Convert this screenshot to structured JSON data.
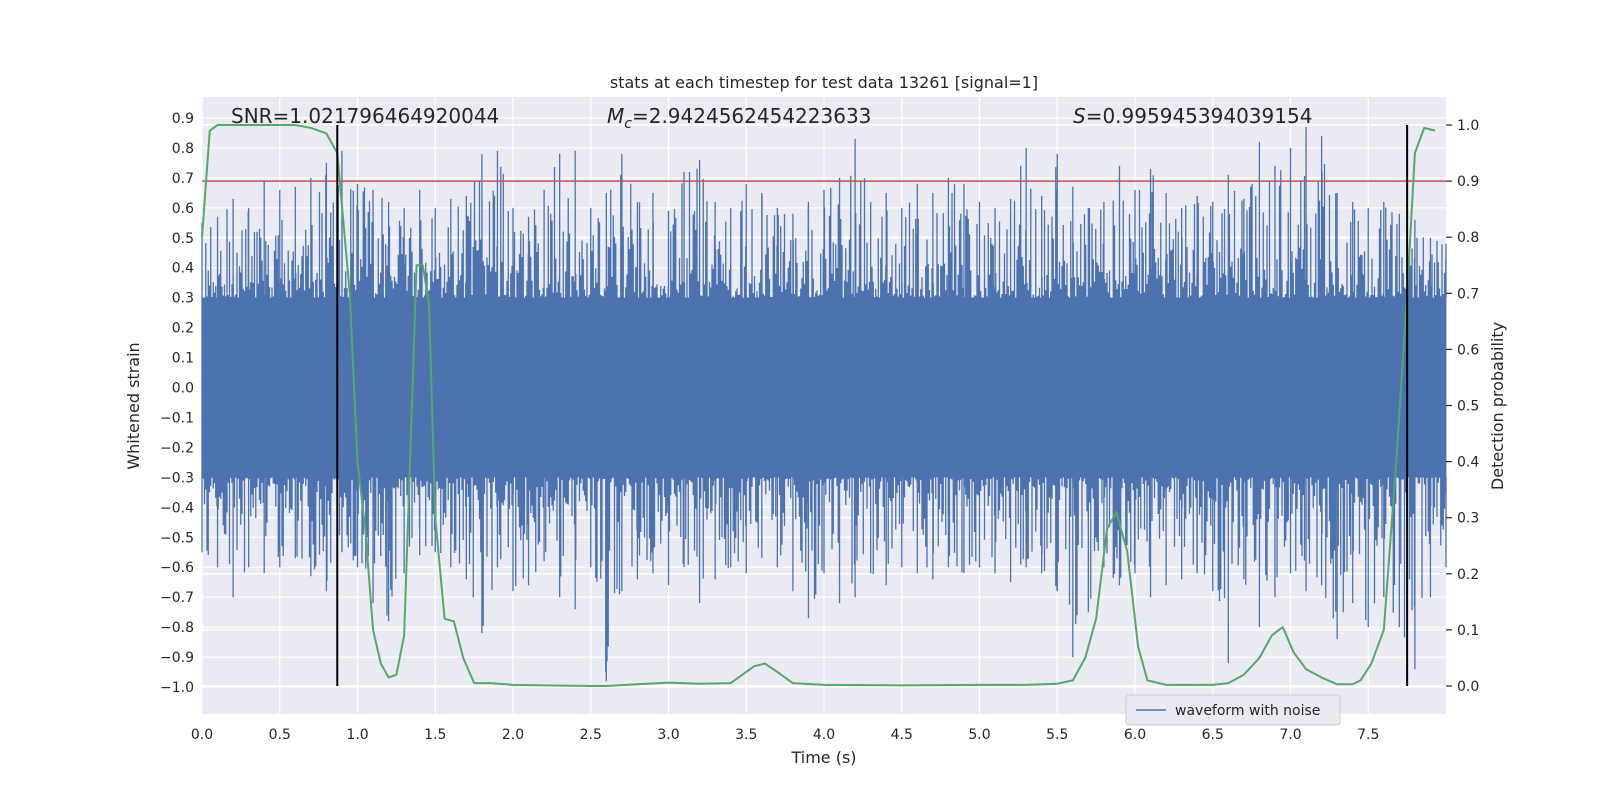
{
  "chart_data": {
    "type": "line",
    "title": "stats at each timestep for test data 13261 [signal=1]",
    "xlabel": "Time (s)",
    "ylabel": "Whitened strain",
    "y2label": "Detection probability",
    "xlim": [
      0.0,
      8.0
    ],
    "ylim": [
      -1.09,
      0.97
    ],
    "y2lim": [
      -0.05,
      1.05
    ],
    "grid": true,
    "x_ticks": [
      "0.0",
      "0.5",
      "1.0",
      "1.5",
      "2.0",
      "2.5",
      "3.0",
      "3.5",
      "4.0",
      "4.5",
      "5.0",
      "5.5",
      "6.0",
      "6.5",
      "7.0",
      "7.5"
    ],
    "y_ticks": [
      "0.9",
      "0.8",
      "0.7",
      "0.6",
      "0.5",
      "0.4",
      "0.3",
      "0.2",
      "0.1",
      "0.0",
      "−0.1",
      "−0.2",
      "−0.3",
      "−0.4",
      "−0.5",
      "−0.6",
      "−0.7",
      "−0.8",
      "−0.9",
      "−1.0"
    ],
    "y2_ticks": [
      "1.0",
      "0.9",
      "0.8",
      "0.7",
      "0.6",
      "0.5",
      "0.4",
      "0.3",
      "0.2",
      "0.1",
      "0.0"
    ],
    "annotations": {
      "snr": "SNR=1.021796464920044",
      "mc_symbol": "M",
      "mc_sub": "c",
      "mc_value": "=2.9424562454223633",
      "s_symbol": "S",
      "s_value": "=0.995945394039154"
    },
    "legend": {
      "position": "lower-right",
      "entries": [
        "waveform with noise"
      ]
    },
    "threshold_line": {
      "axis": "y2",
      "value": 0.9,
      "color": "#c44e52"
    },
    "vertical_lines": {
      "axis": "x",
      "values": [
        0.87,
        7.75
      ],
      "color": "#000000"
    },
    "waveform": {
      "name": "waveform with noise",
      "color": "#4c72b0",
      "x_range": [
        0.0,
        8.0
      ],
      "core_amplitude": 0.3,
      "max_envelope": [
        [
          0.0,
          0.55
        ],
        [
          0.1,
          0.57
        ],
        [
          0.2,
          0.63
        ],
        [
          0.3,
          0.6
        ],
        [
          0.4,
          0.69
        ],
        [
          0.5,
          0.66
        ],
        [
          0.6,
          0.67
        ],
        [
          0.7,
          0.7
        ],
        [
          0.8,
          0.75
        ],
        [
          0.9,
          0.79
        ],
        [
          1.0,
          0.68
        ],
        [
          1.1,
          0.66
        ],
        [
          1.2,
          0.62
        ],
        [
          1.3,
          0.6
        ],
        [
          1.4,
          0.66
        ],
        [
          1.5,
          0.6
        ],
        [
          1.6,
          0.63
        ],
        [
          1.7,
          0.64
        ],
        [
          1.8,
          0.78
        ],
        [
          1.9,
          0.79
        ],
        [
          2.0,
          0.6
        ],
        [
          2.1,
          0.57
        ],
        [
          2.2,
          0.66
        ],
        [
          2.3,
          0.78
        ],
        [
          2.4,
          0.79
        ],
        [
          2.5,
          0.6
        ],
        [
          2.6,
          0.65
        ],
        [
          2.7,
          0.78
        ],
        [
          2.8,
          0.62
        ],
        [
          2.9,
          0.65
        ],
        [
          3.0,
          0.59
        ],
        [
          3.1,
          0.72
        ],
        [
          3.2,
          0.76
        ],
        [
          3.3,
          0.62
        ],
        [
          3.4,
          0.6
        ],
        [
          3.5,
          0.68
        ],
        [
          3.6,
          0.65
        ],
        [
          3.7,
          0.6
        ],
        [
          3.8,
          0.58
        ],
        [
          3.9,
          0.62
        ],
        [
          4.0,
          0.66
        ],
        [
          4.1,
          0.7
        ],
        [
          4.2,
          0.83
        ],
        [
          4.3,
          0.62
        ],
        [
          4.4,
          0.65
        ],
        [
          4.5,
          0.6
        ],
        [
          4.6,
          0.68
        ],
        [
          4.7,
          0.65
        ],
        [
          4.8,
          0.7
        ],
        [
          4.9,
          0.68
        ],
        [
          5.0,
          0.62
        ],
        [
          5.1,
          0.6
        ],
        [
          5.2,
          0.63
        ],
        [
          5.3,
          0.8
        ],
        [
          5.4,
          0.64
        ],
        [
          5.5,
          0.78
        ],
        [
          5.6,
          0.67
        ],
        [
          5.7,
          0.6
        ],
        [
          5.8,
          0.62
        ],
        [
          5.9,
          0.74
        ],
        [
          6.0,
          0.66
        ],
        [
          6.1,
          0.73
        ],
        [
          6.2,
          0.65
        ],
        [
          6.3,
          0.6
        ],
        [
          6.4,
          0.64
        ],
        [
          6.5,
          0.62
        ],
        [
          6.6,
          0.71
        ],
        [
          6.7,
          0.63
        ],
        [
          6.8,
          0.82
        ],
        [
          6.9,
          0.74
        ],
        [
          7.0,
          0.8
        ],
        [
          7.1,
          0.87
        ],
        [
          7.2,
          0.84
        ],
        [
          7.3,
          0.65
        ],
        [
          7.4,
          0.62
        ],
        [
          7.5,
          0.6
        ],
        [
          7.6,
          0.62
        ],
        [
          7.7,
          0.58
        ],
        [
          7.8,
          0.56
        ],
        [
          7.9,
          0.5
        ],
        [
          8.0,
          0.48
        ]
      ],
      "min_envelope": [
        [
          0.0,
          -0.55
        ],
        [
          0.1,
          -0.6
        ],
        [
          0.2,
          -0.7
        ],
        [
          0.3,
          -0.6
        ],
        [
          0.4,
          -0.62
        ],
        [
          0.5,
          -0.6
        ],
        [
          0.6,
          -0.57
        ],
        [
          0.7,
          -0.63
        ],
        [
          0.8,
          -0.68
        ],
        [
          0.9,
          -0.55
        ],
        [
          1.0,
          -0.6
        ],
        [
          1.1,
          -0.72
        ],
        [
          1.2,
          -0.78
        ],
        [
          1.3,
          -0.62
        ],
        [
          1.4,
          -0.56
        ],
        [
          1.5,
          -0.55
        ],
        [
          1.6,
          -0.6
        ],
        [
          1.7,
          -0.64
        ],
        [
          1.8,
          -0.82
        ],
        [
          1.9,
          -0.6
        ],
        [
          2.0,
          -0.68
        ],
        [
          2.1,
          -0.66
        ],
        [
          2.2,
          -0.58
        ],
        [
          2.3,
          -0.7
        ],
        [
          2.4,
          -0.74
        ],
        [
          2.5,
          -0.6
        ],
        [
          2.6,
          -0.98
        ],
        [
          2.7,
          -0.68
        ],
        [
          2.8,
          -0.64
        ],
        [
          2.9,
          -0.62
        ],
        [
          3.0,
          -0.66
        ],
        [
          3.1,
          -0.6
        ],
        [
          3.2,
          -0.72
        ],
        [
          3.3,
          -0.64
        ],
        [
          3.4,
          -0.6
        ],
        [
          3.5,
          -0.62
        ],
        [
          3.6,
          -0.57
        ],
        [
          3.7,
          -0.6
        ],
        [
          3.8,
          -0.68
        ],
        [
          3.9,
          -0.77
        ],
        [
          4.0,
          -0.62
        ],
        [
          4.1,
          -0.72
        ],
        [
          4.2,
          -0.7
        ],
        [
          4.3,
          -0.62
        ],
        [
          4.4,
          -0.66
        ],
        [
          4.5,
          -0.6
        ],
        [
          4.6,
          -0.62
        ],
        [
          4.7,
          -0.64
        ],
        [
          4.8,
          -0.6
        ],
        [
          4.9,
          -0.62
        ],
        [
          5.0,
          -0.6
        ],
        [
          5.1,
          -0.62
        ],
        [
          5.2,
          -0.65
        ],
        [
          5.3,
          -0.6
        ],
        [
          5.4,
          -0.62
        ],
        [
          5.5,
          -0.68
        ],
        [
          5.6,
          -0.9
        ],
        [
          5.7,
          -0.75
        ],
        [
          5.8,
          -0.6
        ],
        [
          5.9,
          -0.66
        ],
        [
          6.0,
          -0.62
        ],
        [
          6.1,
          -0.7
        ],
        [
          6.2,
          -0.66
        ],
        [
          6.3,
          -0.64
        ],
        [
          6.4,
          -0.62
        ],
        [
          6.5,
          -0.68
        ],
        [
          6.6,
          -0.92
        ],
        [
          6.7,
          -0.64
        ],
        [
          6.8,
          -0.8
        ],
        [
          6.9,
          -0.7
        ],
        [
          7.0,
          -0.62
        ],
        [
          7.1,
          -0.68
        ],
        [
          7.2,
          -0.66
        ],
        [
          7.3,
          -0.84
        ],
        [
          7.4,
          -0.72
        ],
        [
          7.5,
          -0.8
        ],
        [
          7.6,
          -0.7
        ],
        [
          7.7,
          -0.8
        ],
        [
          7.8,
          -0.94
        ],
        [
          7.9,
          -0.7
        ],
        [
          8.0,
          -0.6
        ]
      ]
    },
    "detection_probability": {
      "color": "#55a868",
      "axis": "y2",
      "points": [
        [
          0.0,
          0.8
        ],
        [
          0.05,
          0.99
        ],
        [
          0.1,
          1.0
        ],
        [
          0.2,
          1.0
        ],
        [
          0.4,
          1.0
        ],
        [
          0.6,
          1.0
        ],
        [
          0.7,
          0.995
        ],
        [
          0.8,
          0.985
        ],
        [
          0.87,
          0.95
        ],
        [
          0.95,
          0.7
        ],
        [
          1.0,
          0.4
        ],
        [
          1.05,
          0.28
        ],
        [
          1.1,
          0.1
        ],
        [
          1.15,
          0.04
        ],
        [
          1.2,
          0.015
        ],
        [
          1.25,
          0.02
        ],
        [
          1.3,
          0.09
        ],
        [
          1.35,
          0.5
        ],
        [
          1.38,
          0.75
        ],
        [
          1.42,
          0.75
        ],
        [
          1.46,
          0.68
        ],
        [
          1.5,
          0.3
        ],
        [
          1.56,
          0.12
        ],
        [
          1.62,
          0.115
        ],
        [
          1.68,
          0.05
        ],
        [
          1.75,
          0.005
        ],
        [
          1.85,
          0.005
        ],
        [
          2.0,
          0.002
        ],
        [
          2.2,
          0.001
        ],
        [
          2.5,
          0.0
        ],
        [
          2.6,
          0.0
        ],
        [
          2.8,
          0.003
        ],
        [
          3.0,
          0.006
        ],
        [
          3.2,
          0.004
        ],
        [
          3.4,
          0.005
        ],
        [
          3.55,
          0.035
        ],
        [
          3.62,
          0.04
        ],
        [
          3.7,
          0.025
        ],
        [
          3.8,
          0.005
        ],
        [
          4.0,
          0.002
        ],
        [
          4.5,
          0.001
        ],
        [
          5.0,
          0.002
        ],
        [
          5.3,
          0.002
        ],
        [
          5.5,
          0.004
        ],
        [
          5.6,
          0.01
        ],
        [
          5.68,
          0.05
        ],
        [
          5.75,
          0.12
        ],
        [
          5.82,
          0.28
        ],
        [
          5.88,
          0.31
        ],
        [
          5.95,
          0.24
        ],
        [
          6.02,
          0.07
        ],
        [
          6.08,
          0.01
        ],
        [
          6.2,
          0.002
        ],
        [
          6.5,
          0.002
        ],
        [
          6.6,
          0.005
        ],
        [
          6.7,
          0.02
        ],
        [
          6.8,
          0.05
        ],
        [
          6.88,
          0.09
        ],
        [
          6.95,
          0.105
        ],
        [
          7.02,
          0.06
        ],
        [
          7.1,
          0.03
        ],
        [
          7.2,
          0.015
        ],
        [
          7.3,
          0.003
        ],
        [
          7.4,
          0.003
        ],
        [
          7.45,
          0.01
        ],
        [
          7.52,
          0.04
        ],
        [
          7.6,
          0.1
        ],
        [
          7.68,
          0.4
        ],
        [
          7.75,
          0.7
        ],
        [
          7.8,
          0.95
        ],
        [
          7.86,
          0.995
        ],
        [
          7.93,
          0.99
        ]
      ]
    }
  }
}
